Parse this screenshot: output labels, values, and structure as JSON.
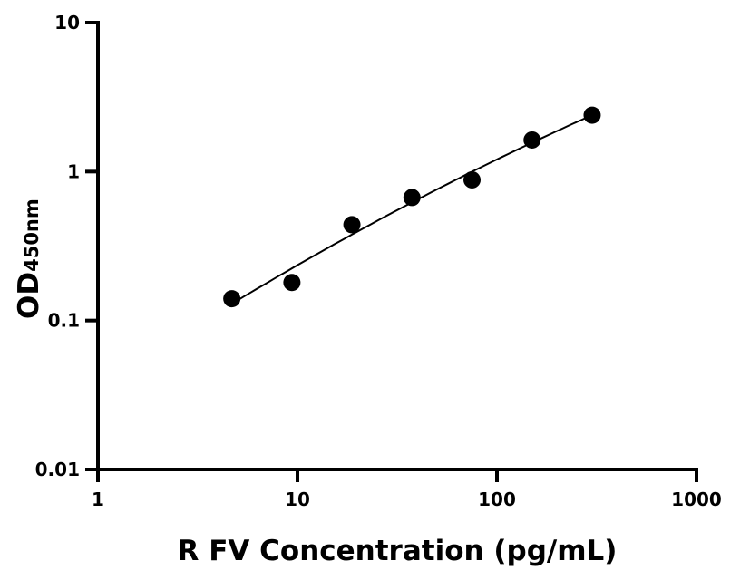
{
  "chart_data": {
    "type": "scatter",
    "title": "",
    "xlabel": "R FV Concentration (pg/mL)",
    "ylabel": "OD",
    "ylabel_subscript": "450nm",
    "x_scale": "log",
    "y_scale": "log",
    "xlim": [
      1,
      1000
    ],
    "ylim": [
      0.01,
      10
    ],
    "x_ticks": [
      1,
      10,
      100,
      1000
    ],
    "x_tick_labels": [
      "1",
      "10",
      "100",
      "1000"
    ],
    "y_ticks": [
      0.01,
      0.1,
      1,
      10
    ],
    "y_tick_labels": [
      "0.01",
      "0.1",
      "1",
      "10"
    ],
    "grid": false,
    "legend": "none",
    "series": [
      {
        "x": [
          4.69,
          9.38,
          18.75,
          37.5,
          75,
          150,
          300
        ],
        "y": [
          0.14,
          0.18,
          0.44,
          0.67,
          0.88,
          1.63,
          2.39
        ],
        "marker": "circle",
        "color": "#000000",
        "fit_line": true
      }
    ]
  }
}
